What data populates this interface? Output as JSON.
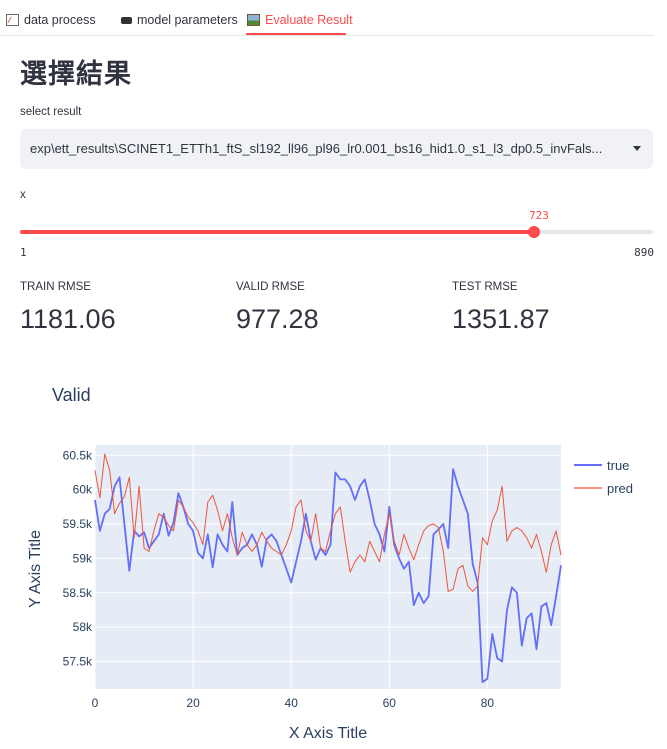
{
  "tabs": [
    {
      "label": "data process",
      "icon": "chart-icon"
    },
    {
      "label": "model parameters",
      "icon": "ram-icon"
    },
    {
      "label": "Evaluate Result",
      "icon": "picture-icon"
    }
  ],
  "active_tab": 2,
  "page_title": "選擇結果",
  "select_result": {
    "label": "select result",
    "value": "exp\\ett_results\\SCINET1_ETTh1_ftS_sl192_ll96_pl96_lr0.001_bs16_hid1.0_s1_l3_dp0.5_invFals..."
  },
  "slider": {
    "label": "x",
    "min": 1,
    "max": 890,
    "value": 723,
    "min_label": "1",
    "max_label": "890",
    "value_label": "723",
    "color": "#ff4b4b"
  },
  "metrics": [
    {
      "label": "TRAIN RMSE",
      "value": "1181.06"
    },
    {
      "label": "VALID RMSE",
      "value": "977.28"
    },
    {
      "label": "TEST RMSE",
      "value": "1351.87"
    }
  ],
  "chart_data": {
    "type": "line",
    "title": "Valid",
    "xlabel": "X Axis Title",
    "ylabel": "Y Axis Title",
    "xlim": [
      0,
      95
    ],
    "ylim": [
      57100,
      60650
    ],
    "x_ticks": [
      0,
      20,
      40,
      60,
      80
    ],
    "x_tick_labels": [
      "0",
      "20",
      "40",
      "60",
      "80"
    ],
    "y_ticks": [
      57500,
      58000,
      58500,
      59000,
      59500,
      60000,
      60500
    ],
    "y_tick_labels": [
      "57.5k",
      "58k",
      "58.5k",
      "59k",
      "59.5k",
      "60k",
      "60.5k"
    ],
    "grid": true,
    "legend_position": "top-right",
    "series": [
      {
        "name": "true",
        "color": "#636efa",
        "width": 1.8,
        "values": [
          59850,
          59400,
          59650,
          59720,
          60050,
          60180,
          59500,
          58820,
          59400,
          59320,
          59380,
          59150,
          59250,
          59350,
          59650,
          59330,
          59520,
          59950,
          59750,
          59500,
          59400,
          59080,
          59000,
          59350,
          58870,
          59350,
          59200,
          59100,
          59820,
          59050,
          59150,
          59200,
          59350,
          59200,
          58880,
          59280,
          59350,
          59250,
          59050,
          58850,
          58650,
          58950,
          59250,
          59650,
          59250,
          58980,
          59150,
          59050,
          59200,
          60250,
          60150,
          60150,
          60050,
          59850,
          60050,
          60150,
          59850,
          59500,
          59350,
          59100,
          59750,
          59200,
          59000,
          58850,
          58950,
          58320,
          58500,
          58350,
          58450,
          59350,
          59420,
          59500,
          59150,
          60300,
          60050,
          59850,
          59650,
          58920,
          58650,
          57200,
          57250,
          57900,
          57550,
          57500,
          58250,
          58580,
          58500,
          57730,
          58130,
          58200,
          57680,
          58300,
          58350,
          58030,
          58450,
          58900
        ]
      },
      {
        "name": "pred",
        "color": "#ef553b",
        "width": 1.0,
        "values": [
          60280,
          59880,
          60520,
          60280,
          59650,
          59800,
          59900,
          60180,
          59300,
          60050,
          59150,
          59100,
          59400,
          59650,
          59600,
          59480,
          59400,
          59850,
          59750,
          59600,
          59520,
          59400,
          59200,
          59820,
          59920,
          59700,
          59400,
          59650,
          59300,
          59050,
          59380,
          59200,
          59100,
          59200,
          59380,
          59250,
          59150,
          59100,
          59050,
          59200,
          59400,
          59750,
          59850,
          59400,
          59250,
          59650,
          59150,
          59100,
          59400,
          59650,
          59750,
          59250,
          58800,
          58950,
          59050,
          58950,
          59250,
          59100,
          58950,
          59350,
          59650,
          59250,
          59050,
          59350,
          59150,
          58980,
          59200,
          59400,
          59480,
          59500,
          59450,
          59100,
          58520,
          58550,
          58850,
          58900,
          58600,
          58520,
          58600,
          59300,
          59200,
          59550,
          59700,
          60050,
          59250,
          59400,
          59450,
          59400,
          59300,
          59150,
          59350,
          59100,
          58800,
          59200,
          59400,
          59050
        ]
      }
    ]
  }
}
